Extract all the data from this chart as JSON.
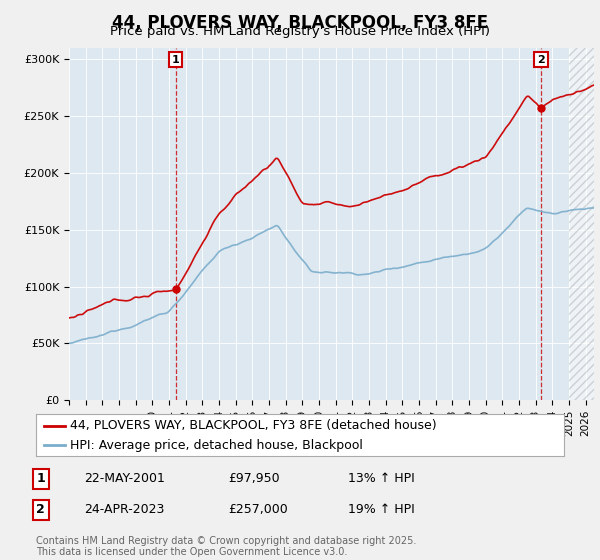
{
  "title": "44, PLOVERS WAY, BLACKPOOL, FY3 8FE",
  "subtitle": "Price paid vs. HM Land Registry's House Price Index (HPI)",
  "ylabel_ticks": [
    "£0",
    "£50K",
    "£100K",
    "£150K",
    "£200K",
    "£250K",
    "£300K"
  ],
  "ytick_vals": [
    0,
    50000,
    100000,
    150000,
    200000,
    250000,
    300000
  ],
  "ylim": [
    0,
    310000
  ],
  "xlim_start": 1995.0,
  "xlim_end": 2026.5,
  "sale1_date": 2001.39,
  "sale1_price": 97950,
  "sale1_label": "1",
  "sale1_pct": "13% ↑ HPI",
  "sale1_date_str": "22-MAY-2001",
  "sale1_price_str": "£97,950",
  "sale2_date": 2023.32,
  "sale2_price": 257000,
  "sale2_label": "2",
  "sale2_pct": "19% ↑ HPI",
  "sale2_date_str": "24-APR-2023",
  "sale2_price_str": "£257,000",
  "legend_line1": "44, PLOVERS WAY, BLACKPOOL, FY3 8FE (detached house)",
  "legend_line2": "HPI: Average price, detached house, Blackpool",
  "line_color_red": "#cc0000",
  "line_color_blue": "#7aadcc",
  "plot_bg_color": "#dde8f0",
  "background_color": "#f0f0f0",
  "footer": "Contains HM Land Registry data © Crown copyright and database right 2025.\nThis data is licensed under the Open Government Licence v3.0.",
  "title_fontsize": 12,
  "subtitle_fontsize": 9.5,
  "tick_fontsize": 8,
  "legend_fontsize": 9,
  "footer_fontsize": 7
}
